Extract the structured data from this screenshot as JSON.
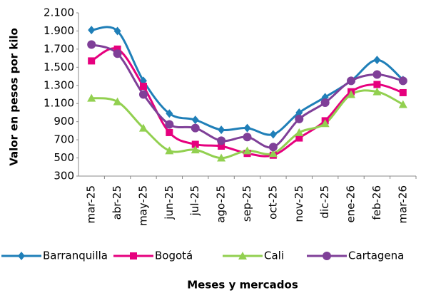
{
  "chart_data": {
    "type": "line",
    "x_label": "Meses  y mercados",
    "y_label": "Valor en pesos por kilo",
    "categories": [
      "mar-25",
      "abr-25",
      "may-25",
      "jun-25",
      "jul-25",
      "ago-25",
      "sep-25",
      "oct-25",
      "nov-25",
      "dic-25",
      "ene-26",
      "feb-26",
      "mar-26"
    ],
    "series": [
      {
        "name": "Barranquilla",
        "color": "#1f7fb8",
        "marker": "diamond",
        "values": [
          1910,
          1900,
          1350,
          990,
          920,
          810,
          830,
          760,
          1000,
          1170,
          1350,
          1580,
          1360
        ]
      },
      {
        "name": "Bogotá",
        "color": "#e6007e",
        "marker": "square",
        "values": [
          1570,
          1700,
          1290,
          780,
          650,
          630,
          550,
          530,
          720,
          910,
          1230,
          1310,
          1220
        ]
      },
      {
        "name": "Cali",
        "color": "#92d050",
        "marker": "triangle",
        "values": [
          1160,
          1120,
          830,
          580,
          590,
          500,
          580,
          550,
          780,
          880,
          1200,
          1230,
          1090
        ]
      },
      {
        "name": "Cartagena",
        "color": "#7f3f98",
        "marker": "circle",
        "values": [
          1750,
          1650,
          1200,
          870,
          830,
          690,
          730,
          620,
          930,
          1110,
          1350,
          1420,
          1350
        ]
      }
    ],
    "ylim": [
      300,
      2100
    ],
    "yticks": [
      300,
      500,
      700,
      900,
      {
        "value": 1100,
        "label": "1.100"
      },
      {
        "value": 1300,
        "label": "1.300"
      },
      {
        "value": 1500,
        "label": "1.500"
      },
      {
        "value": 1700,
        "label": "1.700"
      },
      {
        "value": 1900,
        "label": "1.900"
      },
      {
        "value": 2100,
        "label": "2.100"
      }
    ],
    "smooth": true,
    "legend": "bottom"
  }
}
